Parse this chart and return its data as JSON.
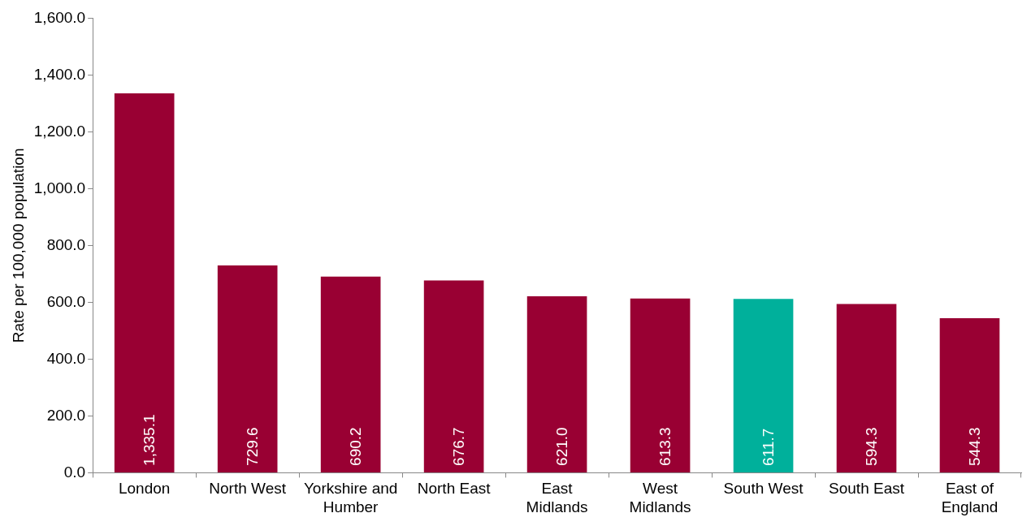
{
  "chart_data": {
    "type": "bar",
    "ylabel": "Rate per 100,000 population",
    "categories": [
      "London",
      "North West",
      "Yorkshire and Humber",
      "North East",
      "East Midlands",
      "West Midlands",
      "South West",
      "South East",
      "East of England"
    ],
    "values": [
      1335.1,
      729.6,
      690.2,
      676.7,
      621.0,
      613.3,
      611.7,
      594.3,
      544.3
    ],
    "colors": [
      "#990033",
      "#990033",
      "#990033",
      "#990033",
      "#990033",
      "#990033",
      "#00b09b",
      "#990033",
      "#990033"
    ],
    "value_labels": [
      "1,335.1",
      "729.6",
      "690.2",
      "676.7",
      "621.0",
      "613.3",
      "611.7",
      "594.3",
      "544.3"
    ],
    "ylim": [
      0,
      1600
    ],
    "yticks": [
      {
        "value": 0,
        "label": "0.0"
      },
      {
        "value": 200,
        "label": "200.0"
      },
      {
        "value": 400,
        "label": "400.0"
      },
      {
        "value": 600,
        "label": "600.0"
      },
      {
        "value": 800,
        "label": "800.0"
      },
      {
        "value": 1000,
        "label": "1,000.0"
      },
      {
        "value": 1200,
        "label": "1,200.0"
      },
      {
        "value": 1400,
        "label": "1,400.0"
      },
      {
        "value": 1600,
        "label": "1,600.0"
      }
    ],
    "grid": false,
    "legend": false
  }
}
